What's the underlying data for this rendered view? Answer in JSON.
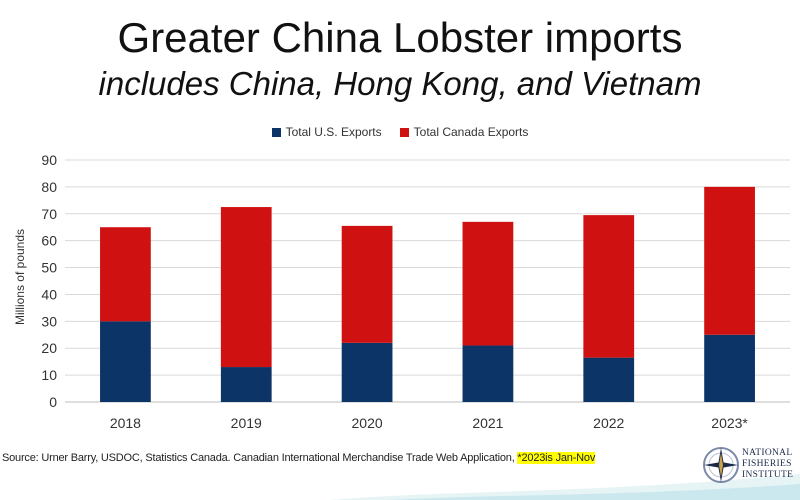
{
  "chart_data": {
    "type": "bar",
    "stacked": true,
    "title": "Greater China Lobster imports",
    "subtitle": "includes China, Hong Kong, and Vietnam",
    "xlabel": "",
    "ylabel": "Millions of pounds",
    "ylim": [
      0,
      90
    ],
    "yticks": [
      0,
      10,
      20,
      30,
      40,
      50,
      60,
      70,
      80,
      90
    ],
    "grid": true,
    "legend_position": "top",
    "categories": [
      "2018",
      "2019",
      "2020",
      "2021",
      "2022",
      "2023*"
    ],
    "series": [
      {
        "name": "Total U.S. Exports",
        "color": "#0d3466",
        "values": [
          30,
          13,
          22,
          21,
          16.5,
          25
        ]
      },
      {
        "name": "Total Canada Exports",
        "color": "#d01111",
        "values": [
          35,
          59.5,
          43.5,
          46,
          53,
          55
        ]
      }
    ]
  },
  "footer": {
    "source": "Source: Urner Barry, USDOC, Statistics Canada. Canadian International Merchandise Trade Web Application, ",
    "note": "*2023is Jan-Nov"
  },
  "logo": {
    "line1": "NATIONAL",
    "line2": "FISHERIES",
    "line3": "INSTITUTE"
  }
}
